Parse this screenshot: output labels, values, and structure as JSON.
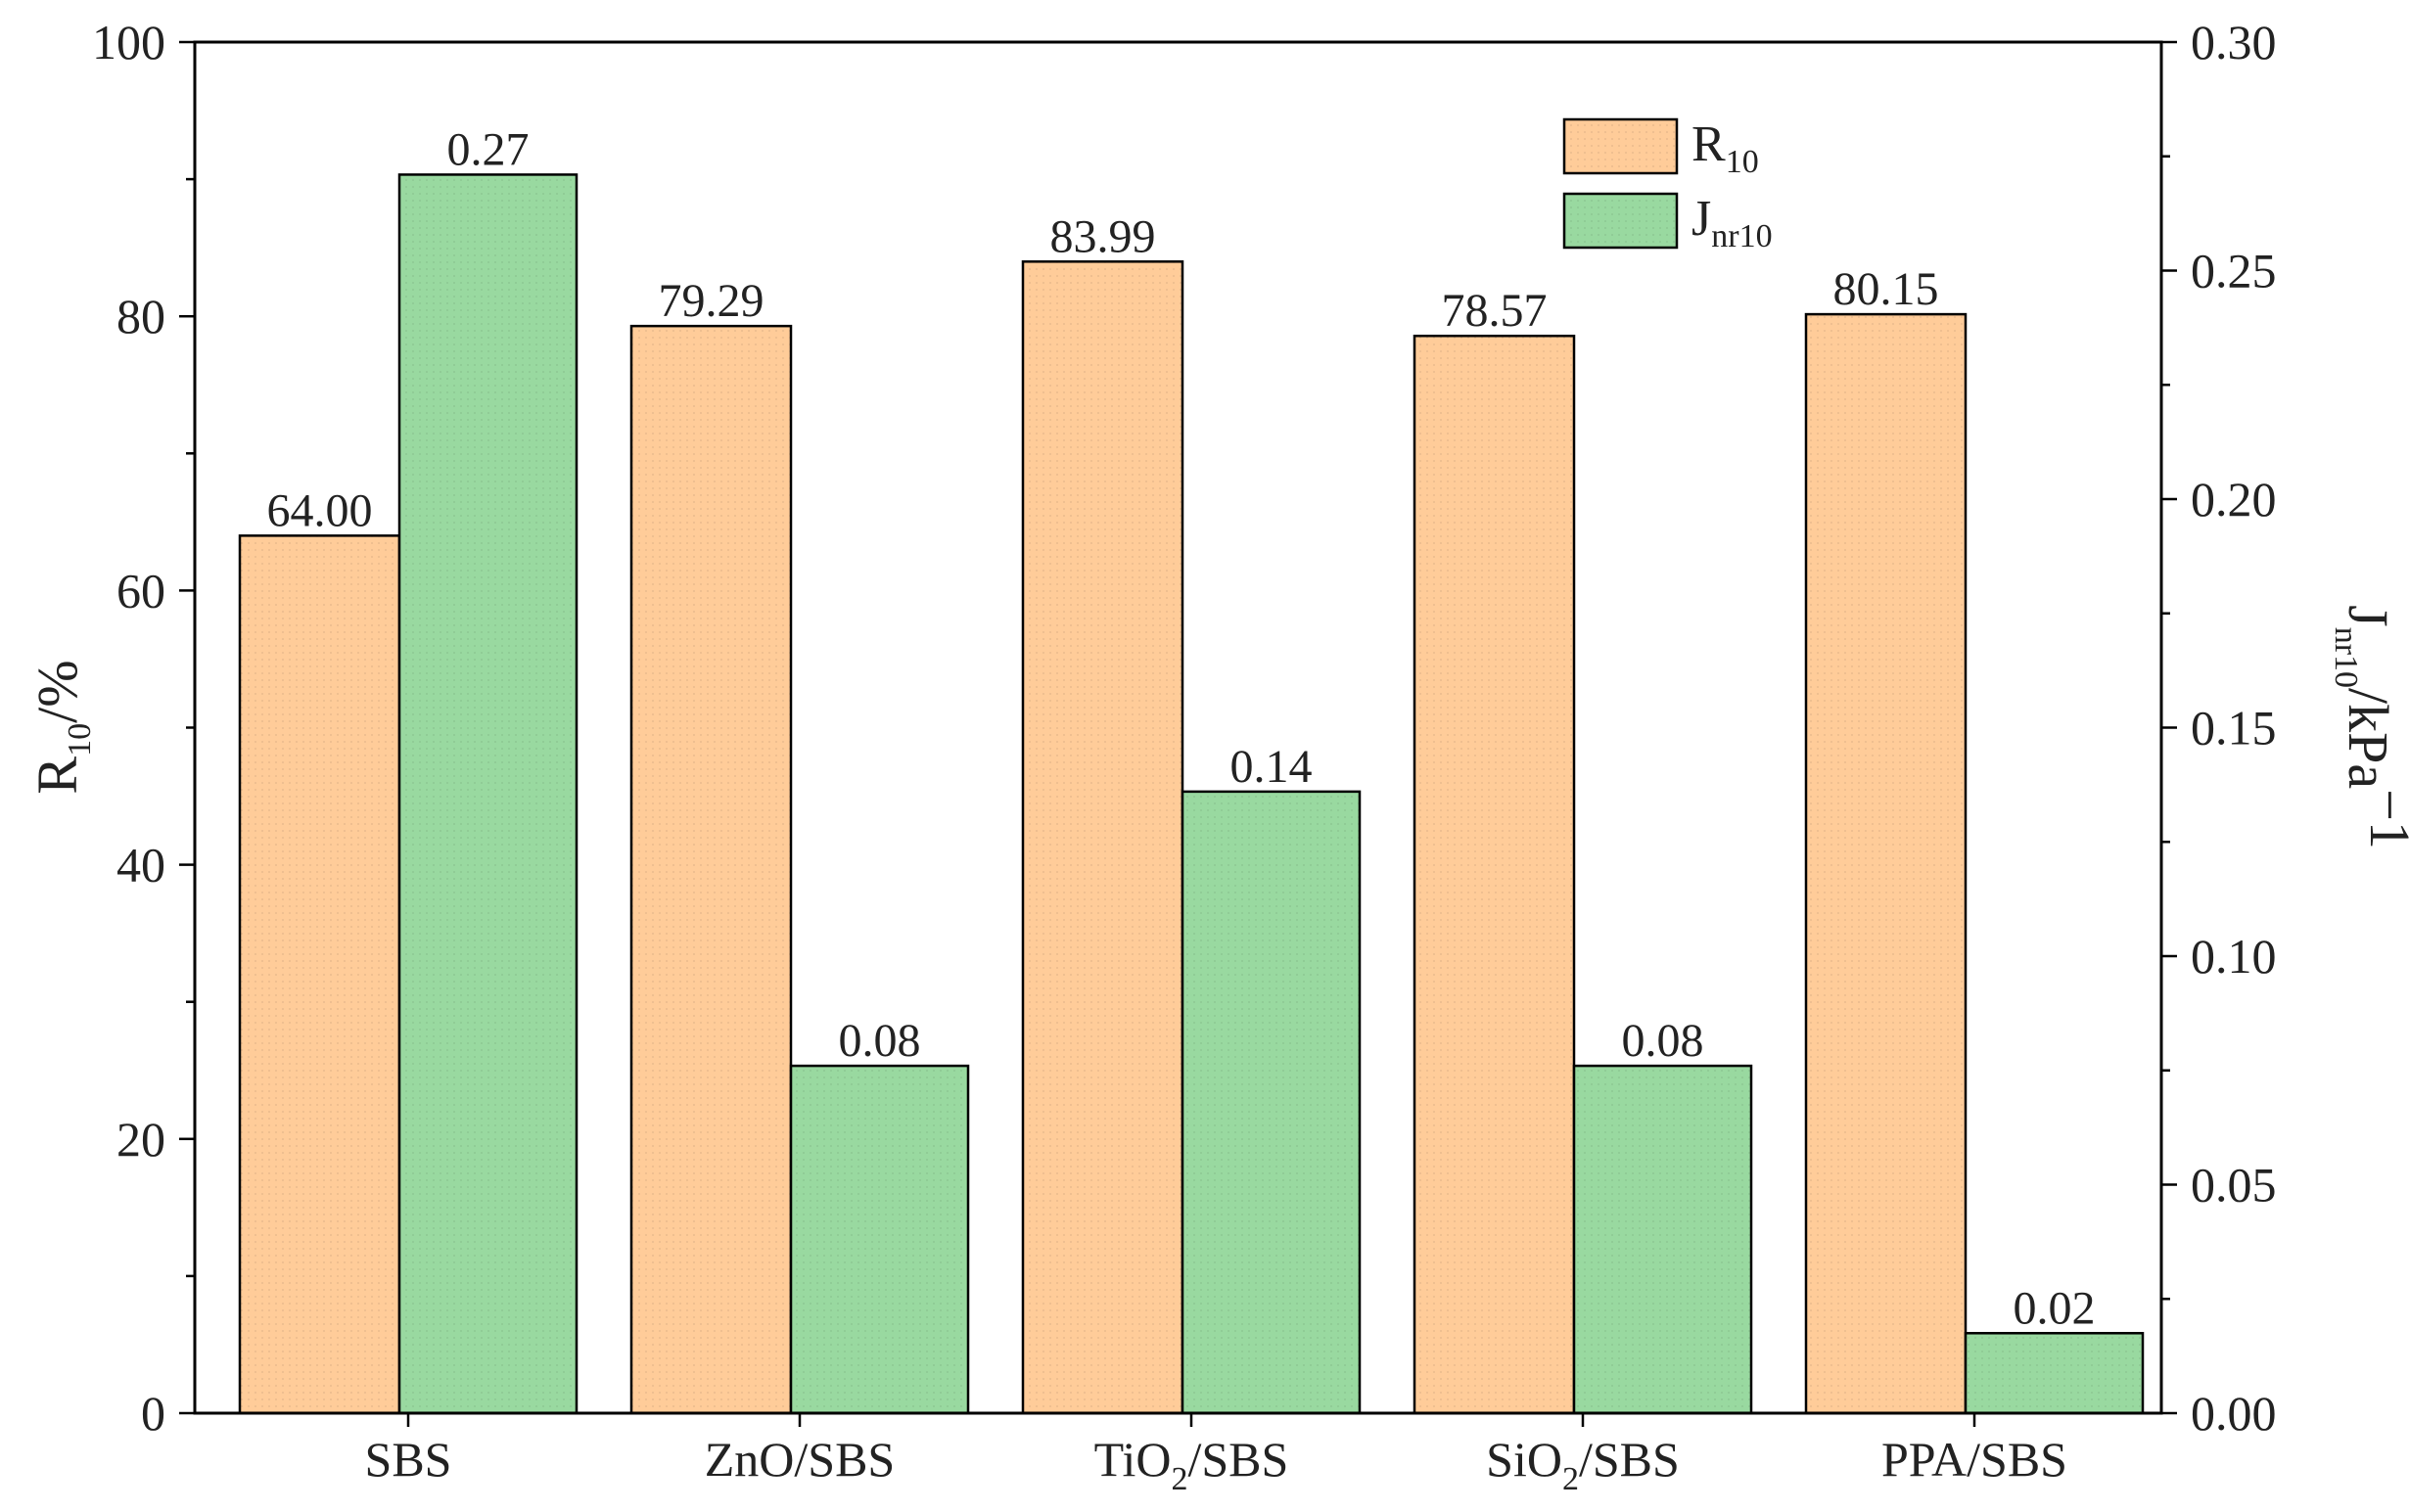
{
  "chart_data": {
    "type": "bar",
    "categories": [
      {
        "base": "SBS",
        "sub": "",
        "rest": ""
      },
      {
        "base": "ZnO/SBS",
        "sub": "",
        "rest": ""
      },
      {
        "base": "TiO",
        "sub": "2",
        "rest": "/SBS"
      },
      {
        "base": "SiO",
        "sub": "2",
        "rest": "/SBS"
      },
      {
        "base": "PPA/SBS",
        "sub": "",
        "rest": ""
      }
    ],
    "series": [
      {
        "name": "R10",
        "legend": {
          "base": "R",
          "sub": "10"
        },
        "axis": "left",
        "color": "#FFCC99",
        "values": [
          64.0,
          79.29,
          83.99,
          78.57,
          80.15
        ],
        "labels": [
          "64.00",
          "79.29",
          "83.99",
          "78.57",
          "80.15"
        ]
      },
      {
        "name": "Jnr10",
        "legend": {
          "base": "J",
          "sub": "nr10"
        },
        "axis": "right",
        "color": "#99D9A0",
        "values": [
          0.27,
          0.08,
          0.14,
          0.08,
          0.02
        ],
        "display_values": [
          0.271,
          0.076,
          0.136,
          0.076,
          0.0175
        ],
        "labels": [
          "0.27",
          "0.08",
          "0.14",
          "0.08",
          "0.02"
        ]
      }
    ],
    "y_left": {
      "title_base": "R",
      "title_sub": "10",
      "title_rest": "/%",
      "min": 0,
      "max": 100,
      "ticks": [
        0,
        20,
        40,
        60,
        80,
        100
      ],
      "tick_labels": [
        "0",
        "20",
        "40",
        "60",
        "80",
        "100"
      ]
    },
    "y_right": {
      "title_base": "J",
      "title_sub": "nr10",
      "title_rest": "/kPa",
      "title_sup": "−1",
      "min": 0,
      "max": 0.3,
      "ticks": [
        0,
        0.05,
        0.1,
        0.15,
        0.2,
        0.25,
        0.3
      ],
      "tick_labels": [
        "0.00",
        "0.05",
        "0.10",
        "0.15",
        "0.20",
        "0.25",
        "0.30"
      ]
    },
    "legend_position": "top-right"
  }
}
